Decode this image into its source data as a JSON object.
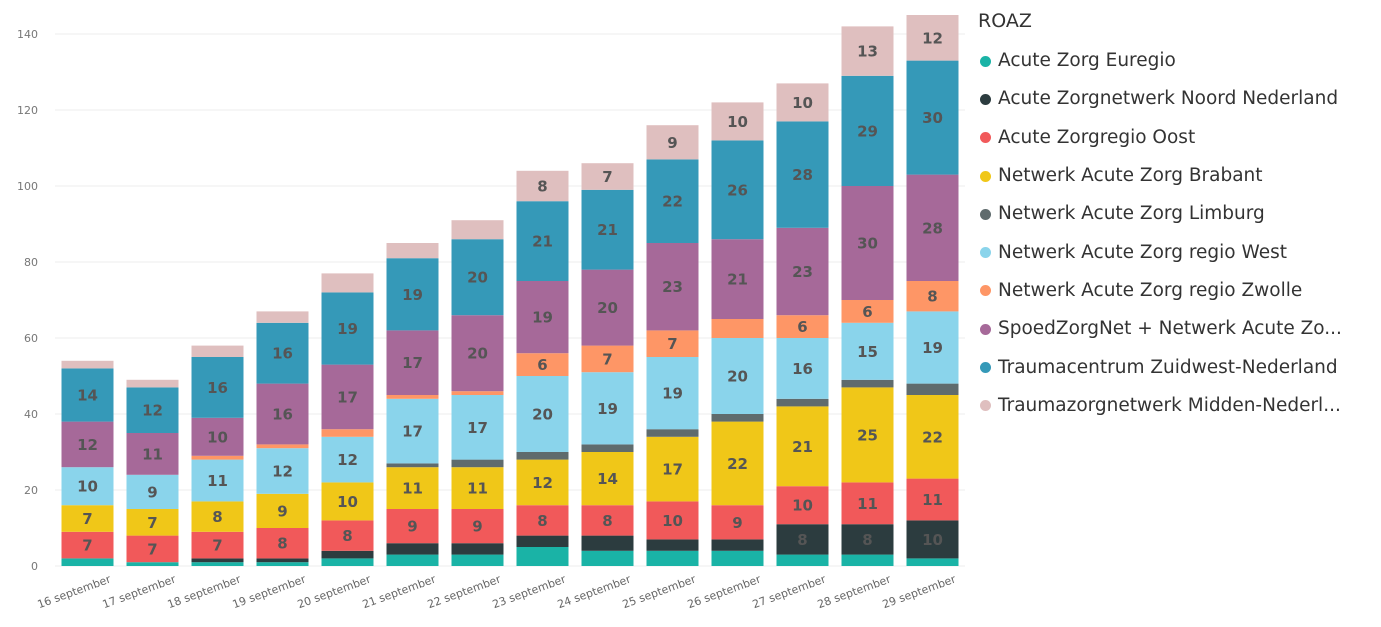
{
  "legend_title": "ROAZ",
  "chart_data": {
    "type": "bar",
    "stacked": true,
    "categories": [
      "16 september",
      "17 september",
      "18 september",
      "19 september",
      "20 september",
      "21 september",
      "22 september",
      "23 september",
      "24 september",
      "25 september",
      "26 september",
      "27 september",
      "28 september",
      "29 september"
    ],
    "ylim": [
      0,
      145
    ],
    "yticks": [
      0,
      20,
      40,
      60,
      80,
      100,
      120,
      140
    ],
    "grid": true,
    "legend_position": "right",
    "series": [
      {
        "name": "Acute Zorg Euregio",
        "color": "#1ab3a6",
        "values": [
          2,
          1,
          1,
          1,
          2,
          3,
          3,
          5,
          4,
          4,
          4,
          3,
          3,
          2
        ],
        "labels": [
          null,
          null,
          null,
          null,
          null,
          null,
          null,
          null,
          null,
          null,
          null,
          null,
          null,
          null
        ]
      },
      {
        "name": "Acute Zorgnetwerk Noord Nederland",
        "color": "#2c3c3f",
        "values": [
          0,
          0,
          1,
          1,
          2,
          3,
          3,
          3,
          4,
          3,
          3,
          8,
          8,
          10
        ],
        "labels": [
          null,
          null,
          null,
          null,
          null,
          null,
          null,
          null,
          null,
          null,
          null,
          8,
          8,
          10
        ]
      },
      {
        "name": "Acute Zorgregio Oost",
        "color": "#f1595a",
        "values": [
          7,
          7,
          7,
          8,
          8,
          9,
          9,
          8,
          8,
          10,
          9,
          10,
          11,
          11
        ],
        "labels": [
          7,
          7,
          7,
          8,
          8,
          9,
          9,
          8,
          8,
          10,
          9,
          10,
          11,
          11
        ]
      },
      {
        "name": "Netwerk Acute Zorg Brabant",
        "color": "#f0c718",
        "values": [
          7,
          7,
          8,
          9,
          10,
          11,
          11,
          12,
          14,
          17,
          22,
          21,
          25,
          22
        ],
        "labels": [
          7,
          7,
          8,
          9,
          10,
          11,
          11,
          12,
          14,
          17,
          22,
          21,
          25,
          22
        ]
      },
      {
        "name": "Netwerk Acute Zorg Limburg",
        "color": "#5f6b6d",
        "values": [
          0,
          0,
          0,
          0,
          0,
          1,
          2,
          2,
          2,
          2,
          2,
          2,
          2,
          3
        ],
        "labels": [
          null,
          null,
          null,
          null,
          null,
          null,
          null,
          null,
          null,
          null,
          null,
          null,
          null,
          null
        ]
      },
      {
        "name": "Netwerk Acute Zorg regio West",
        "color": "#8ad4eb",
        "values": [
          10,
          9,
          11,
          12,
          12,
          17,
          17,
          20,
          19,
          19,
          20,
          16,
          15,
          19
        ],
        "labels": [
          10,
          9,
          11,
          12,
          12,
          17,
          17,
          20,
          19,
          19,
          20,
          16,
          15,
          19
        ]
      },
      {
        "name": "Netwerk Acute Zorg regio Zwolle",
        "color": "#fe9666",
        "values": [
          0,
          0,
          1,
          1,
          2,
          1,
          1,
          6,
          7,
          7,
          5,
          6,
          6,
          8
        ],
        "labels": [
          null,
          null,
          null,
          null,
          null,
          null,
          null,
          6,
          7,
          7,
          null,
          6,
          6,
          8
        ]
      },
      {
        "name": "SpoedZorgNet + Netwerk Acute Zo...",
        "color": "#a66999",
        "values": [
          12,
          11,
          10,
          16,
          17,
          17,
          20,
          19,
          20,
          23,
          21,
          23,
          30,
          28
        ],
        "labels": [
          12,
          11,
          10,
          16,
          17,
          17,
          20,
          19,
          20,
          23,
          21,
          23,
          30,
          28
        ]
      },
      {
        "name": "Traumacentrum Zuidwest-Nederland",
        "color": "#3599b8",
        "values": [
          14,
          12,
          16,
          16,
          19,
          19,
          20,
          21,
          21,
          22,
          26,
          28,
          29,
          30
        ],
        "labels": [
          14,
          12,
          16,
          16,
          19,
          19,
          20,
          21,
          21,
          22,
          26,
          28,
          29,
          30
        ]
      },
      {
        "name": "Traumazorgnetwerk Midden-Nederl...",
        "color": "#dfbfbf",
        "values": [
          2,
          2,
          3,
          3,
          5,
          4,
          5,
          8,
          7,
          9,
          10,
          10,
          13,
          12
        ],
        "labels": [
          null,
          null,
          null,
          null,
          null,
          null,
          null,
          8,
          7,
          9,
          10,
          10,
          13,
          12
        ]
      }
    ]
  }
}
